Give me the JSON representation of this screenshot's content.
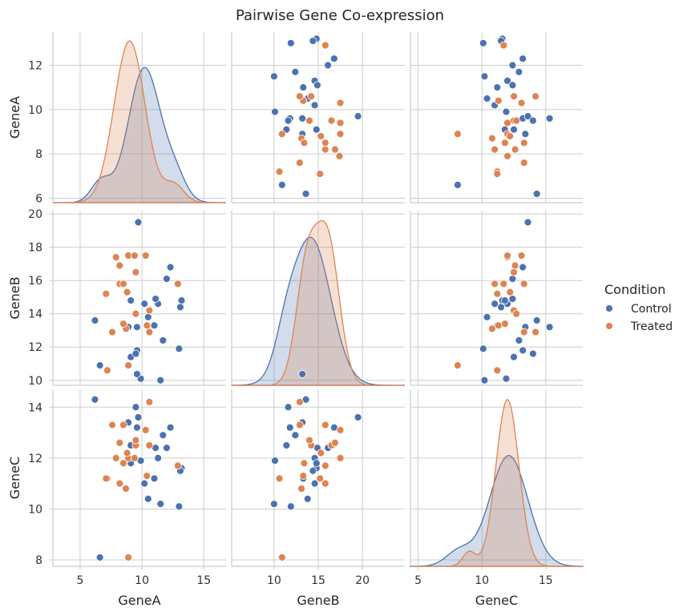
{
  "chart_data": {
    "type": "scatter",
    "title": "Pairwise Gene Co-expression",
    "variables": [
      "GeneA",
      "GeneB",
      "GeneC"
    ],
    "axes": {
      "GeneA": {
        "label": "GeneA",
        "range": [
          2.8,
          16.8
        ],
        "ticks_y": [
          6,
          8,
          10,
          12
        ],
        "ticks_x": [
          5,
          10,
          15
        ],
        "tick_labels_y": [
          "6",
          "8",
          "10",
          "12"
        ],
        "tick_labels_x": [
          "5",
          "10",
          "15"
        ]
      },
      "GeneB": {
        "label": "GeneB",
        "range": [
          5.2,
          24.8
        ],
        "ticks_y": [
          10,
          12,
          14,
          16,
          18,
          20
        ],
        "ticks_x": [
          10,
          15,
          20
        ],
        "tick_labels_y": [
          "10",
          "12",
          "14",
          "16",
          "18",
          "20"
        ],
        "tick_labels_x": [
          "10",
          "15",
          "20"
        ]
      },
      "GeneC": {
        "label": "GeneC",
        "range": [
          4.4,
          17.9
        ],
        "ticks_y": [
          8,
          10,
          12,
          14
        ],
        "ticks_x": [
          5,
          10,
          15
        ],
        "tick_labels_y": [
          "8",
          "10",
          "12",
          "14"
        ],
        "tick_labels_x": [
          "5",
          "10",
          "15"
        ]
      }
    },
    "scatter_ranges": {
      "GeneA": [
        5.8,
        13.5
      ],
      "GeneB": [
        9.7,
        20.2
      ],
      "GeneC": [
        7.75,
        14.7
      ]
    },
    "grid": true,
    "legend": {
      "title": "Condition",
      "placement": "right",
      "entries": [
        {
          "name": "Control",
          "color": "#4c72b0"
        },
        {
          "name": "Treated",
          "color": "#dd8452"
        }
      ]
    },
    "series": [
      {
        "name": "Control",
        "color": "#4c72b0",
        "points": [
          {
            "GeneA": 13.2,
            "GeneB": 14.8,
            "GeneC": 11.6
          },
          {
            "GeneA": 11.5,
            "GeneB": 10.0,
            "GeneC": 10.2
          },
          {
            "GeneA": 11.0,
            "GeneB": 13.3,
            "GeneC": 11.2
          },
          {
            "GeneA": 10.5,
            "GeneB": 13.8,
            "GeneC": 10.4
          },
          {
            "GeneA": 9.1,
            "GeneB": 11.4,
            "GeneC": 12.5
          },
          {
            "GeneA": 9.6,
            "GeneB": 11.8,
            "GeneC": 13.2
          },
          {
            "GeneA": 11.3,
            "GeneB": 14.6,
            "GeneC": 12.0
          },
          {
            "GeneA": 11.1,
            "GeneB": 14.9,
            "GeneC": 12.4
          },
          {
            "GeneA": 9.1,
            "GeneB": 14.8,
            "GeneC": 11.8
          },
          {
            "GeneA": 9.7,
            "GeneB": 19.5,
            "GeneC": 13.6
          },
          {
            "GeneA": 6.6,
            "GeneB": 10.9,
            "GeneC": 8.1
          },
          {
            "GeneA": 6.2,
            "GeneB": 13.6,
            "GeneC": 14.3
          },
          {
            "GeneA": 13.0,
            "GeneB": 11.9,
            "GeneC": 10.1
          },
          {
            "GeneA": 13.1,
            "GeneB": 14.4,
            "GeneC": 11.5
          },
          {
            "GeneA": 9.5,
            "GeneB": 11.6,
            "GeneC": 14.0
          },
          {
            "GeneA": 12.3,
            "GeneB": 16.8,
            "GeneC": 13.2
          },
          {
            "GeneA": 12.0,
            "GeneB": 16.1,
            "GeneC": 12.4
          },
          {
            "GeneA": 11.7,
            "GeneB": 12.4,
            "GeneC": 12.9
          },
          {
            "GeneA": 10.2,
            "GeneB": 14.6,
            "GeneC": 11.0
          },
          {
            "GeneA": 9.6,
            "GeneB": 13.2,
            "GeneC": 15.3
          },
          {
            "GeneA": 8.9,
            "GeneB": 13.2,
            "GeneC": 13.4
          },
          {
            "GeneA": 9.9,
            "GeneB": 10.1,
            "GeneC": 11.9
          }
        ]
      },
      {
        "name": "Treated",
        "color": "#dd8452",
        "points": [
          {
            "GeneA": 7.2,
            "GeneB": 10.6,
            "GeneC": 11.2
          },
          {
            "GeneA": 7.9,
            "GeneB": 17.4,
            "GeneC": 12.0
          },
          {
            "GeneA": 9.5,
            "GeneB": 16.5,
            "GeneC": 12.5
          },
          {
            "GeneA": 8.9,
            "GeneB": 17.5,
            "GeneC": 12.0
          },
          {
            "GeneA": 12.9,
            "GeneB": 15.8,
            "GeneC": 11.7
          },
          {
            "GeneA": 7.6,
            "GeneB": 12.9,
            "GeneC": 13.3
          },
          {
            "GeneA": 8.7,
            "GeneB": 13.1,
            "GeneC": 10.8
          },
          {
            "GeneA": 10.3,
            "GeneB": 17.5,
            "GeneC": 13.1
          },
          {
            "GeneA": 10.6,
            "GeneB": 14.2,
            "GeneC": 12.5
          },
          {
            "GeneA": 9.4,
            "GeneB": 17.5,
            "GeneC": 12.0
          },
          {
            "GeneA": 8.2,
            "GeneB": 15.8,
            "GeneC": 11.0
          },
          {
            "GeneA": 8.9,
            "GeneB": 10.9,
            "GeneC": 8.1
          },
          {
            "GeneA": 7.1,
            "GeneB": 15.2,
            "GeneC": 11.2
          },
          {
            "GeneA": 9.5,
            "GeneB": 14.0,
            "GeneC": 12.7
          },
          {
            "GeneA": 10.4,
            "GeneB": 13.3,
            "GeneC": 11.3
          },
          {
            "GeneA": 8.2,
            "GeneB": 16.9,
            "GeneC": 12.6
          },
          {
            "GeneA": 10.6,
            "GeneB": 12.9,
            "GeneC": 14.2
          },
          {
            "GeneA": 8.5,
            "GeneB": 13.4,
            "GeneC": 11.8
          },
          {
            "GeneA": 8.5,
            "GeneB": 15.8,
            "GeneC": 13.3
          },
          {
            "GeneA": 8.8,
            "GeneB": 15.3,
            "GeneC": 12.2
          }
        ]
      }
    ],
    "kde": {
      "GeneA": {
        "Control": {
          "peak": 11.9,
          "components": [
            [
              10.2,
              1.3,
              0.75
            ],
            [
              6.7,
              0.8,
              0.12
            ],
            [
              12.7,
              0.9,
              0.13
            ]
          ]
        },
        "Treated": {
          "peak": 13.1,
          "components": [
            [
              9.0,
              1.25,
              0.9
            ],
            [
              12.6,
              0.8,
              0.1
            ]
          ]
        }
      },
      "GeneB": {
        "Control": {
          "peak": 18.6,
          "components": [
            [
              14.2,
              2.2,
              0.85
            ],
            [
              11.3,
              1.2,
              0.15
            ]
          ]
        },
        "Treated": {
          "peak": 19.6,
          "components": [
            [
              16.1,
              1.3,
              0.55
            ],
            [
              13.7,
              1.2,
              0.45
            ]
          ]
        }
      },
      "GeneC": {
        "Control": {
          "peak": 12.1,
          "components": [
            [
              12.1,
              1.5,
              0.88
            ],
            [
              8.2,
              1.0,
              0.12
            ]
          ]
        },
        "Treated": {
          "peak": 14.3,
          "components": [
            [
              12.0,
              0.9,
              0.92
            ],
            [
              9.0,
              0.5,
              0.08
            ]
          ]
        }
      }
    }
  }
}
